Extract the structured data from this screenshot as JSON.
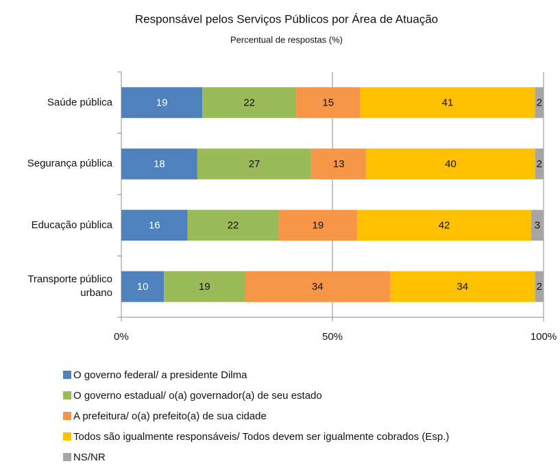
{
  "chart_data": {
    "type": "bar",
    "orientation": "horizontal",
    "stacked": "percent",
    "title": "Responsável pelos Serviços Públicos por Área de Atuação",
    "subtitle": "Percentual de respostas (%)",
    "categories": [
      "Saúde pública",
      "Segurança pública",
      "Educação pública",
      "Transporte público urbano"
    ],
    "series": [
      {
        "name": "O governo federal/ a presidente Dilma",
        "color": "#4f81bd",
        "values": [
          19,
          18,
          16,
          10
        ]
      },
      {
        "name": "O governo estadual/ o(a) governador(a) de seu estado",
        "color": "#9bbb59",
        "values": [
          22,
          27,
          22,
          19
        ]
      },
      {
        "name": "A prefeitura/ o(a) prefeito(a) de sua cidade",
        "color": "#f79646",
        "values": [
          15,
          13,
          19,
          34
        ]
      },
      {
        "name": "Todos são igualmente responsáveis/ Todos devem ser igualmente cobrados (Esp.)",
        "color": "#ffc000",
        "values": [
          41,
          40,
          42,
          34
        ]
      },
      {
        "name": "NS/NR",
        "color": "#a6a6a6",
        "values": [
          2,
          2,
          3,
          2
        ]
      }
    ],
    "xlim": [
      0,
      100
    ],
    "xticks": [
      {
        "value": 0,
        "label": "0%"
      },
      {
        "value": 50,
        "label": "50%"
      },
      {
        "value": 100,
        "label": "100%"
      }
    ],
    "grid": true,
    "legend": "bottom"
  }
}
